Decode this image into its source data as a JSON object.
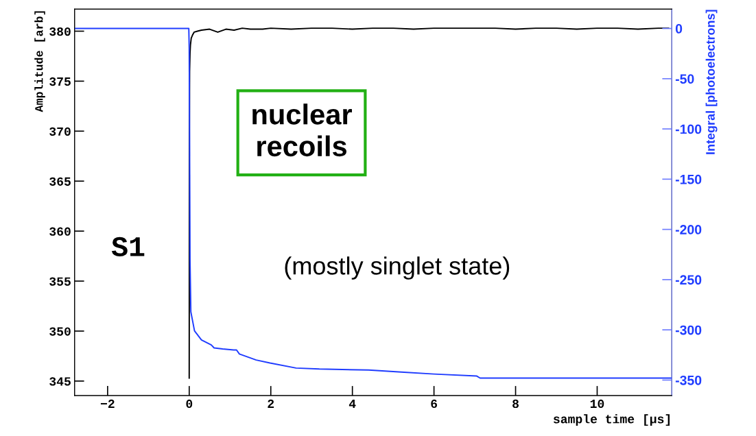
{
  "chart_data": {
    "type": "line",
    "xlabel": "sample time [µs]",
    "ylabel": "Amplitude [arb]",
    "y2label": "Integral [photoelectrons]",
    "xlim": [
      -2.81,
      11.83
    ],
    "ylim": [
      343.55,
      382.2
    ],
    "y2lim": [
      -365.4,
      19.2
    ],
    "xticks": [
      {
        "value": -2,
        "label": "−2"
      },
      0,
      2,
      4,
      6,
      8,
      10
    ],
    "yticks": [
      345,
      350,
      355,
      360,
      365,
      370,
      375,
      380
    ],
    "y2ticks": [
      -350,
      -300,
      -250,
      -200,
      -150,
      -100,
      -50,
      0
    ],
    "grid": false,
    "legend": false,
    "marker": "none",
    "line_style": "solid",
    "annotations": [
      "S1",
      "nuclear\nrecoils",
      "(mostly singlet state)"
    ],
    "series": [
      {
        "color": "#000000",
        "x": [
          0.0,
          0.005,
          0.01,
          0.02,
          0.03,
          0.05,
          0.08,
          0.12,
          0.2,
          0.3,
          0.5,
          0.7,
          0.9,
          1.1,
          1.3,
          1.5,
          1.8,
          2.0,
          2.5,
          3.0,
          3.5,
          4.0,
          4.5,
          5.0,
          5.5,
          6.0,
          6.5,
          7.0,
          7.5,
          8.0,
          8.5,
          9.0,
          9.5,
          10.0,
          10.5,
          11.0,
          11.5,
          11.75
        ],
        "values": [
          345.3,
          370.0,
          376.0,
          377.8,
          378.6,
          379.3,
          379.6,
          379.9,
          380.0,
          380.1,
          380.2,
          379.9,
          380.2,
          380.1,
          380.3,
          380.2,
          380.2,
          380.3,
          380.2,
          380.3,
          380.3,
          380.2,
          380.3,
          380.3,
          380.2,
          380.3,
          380.3,
          380.3,
          380.3,
          380.2,
          380.3,
          380.3,
          380.2,
          380.3,
          380.3,
          380.2,
          380.3,
          380.3
        ]
      },
      {
        "color": "#1f3cff",
        "axis": "y2",
        "x": [
          -2.81,
          -0.01,
          0.0,
          0.01,
          0.02,
          0.04,
          0.13,
          0.3,
          0.54,
          0.61,
          0.82,
          1.09,
          1.16,
          1.23,
          1.5,
          1.64,
          1.98,
          2.62,
          3.19,
          4.4,
          5.2,
          6.0,
          7.05,
          7.13,
          11.83
        ],
        "values": [
          0,
          0,
          -20,
          -120,
          -230,
          -282,
          -301,
          -310,
          -315,
          -318,
          -319,
          -320,
          -320,
          -324,
          -328,
          -330,
          -333,
          -338,
          -339,
          -340,
          -342,
          -344,
          -346,
          -348,
          -348
        ]
      }
    ]
  }
}
